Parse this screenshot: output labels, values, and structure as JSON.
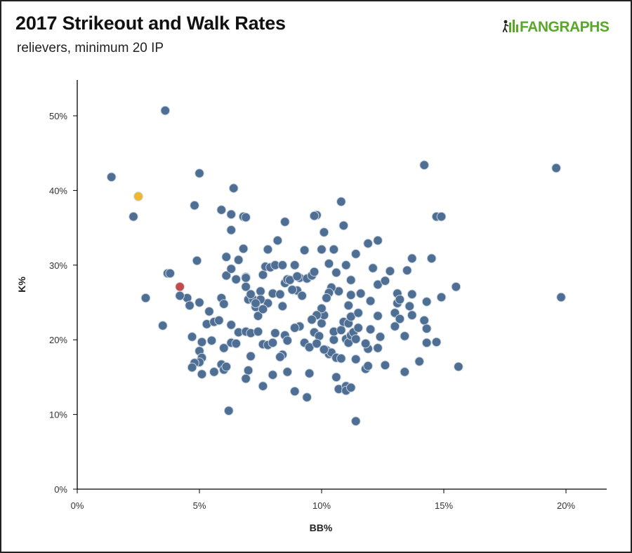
{
  "header": {
    "title": "2017 Strikeout and Walk Rates",
    "subtitle": "relievers, minimum 20 IP",
    "logo_text": "FANGRAPHS",
    "logo_icon": "fangraphs-logo-icon"
  },
  "colors": {
    "point": "#4e6f93",
    "highlight_yellow": "#f0b82c",
    "highlight_red": "#c44a4a",
    "axis": "#000000",
    "logo_green": "#5aa82a"
  },
  "chart_data": {
    "type": "scatter",
    "title": "2017 Strikeout and Walk Rates",
    "subtitle": "relievers, minimum 20 IP",
    "xlabel": "BB%",
    "ylabel": "K%",
    "xlim": [
      0,
      21.5
    ],
    "ylim": [
      0,
      55
    ],
    "x_ticks": [
      0,
      5,
      10,
      15,
      20
    ],
    "x_tick_labels": [
      "0%",
      "5%",
      "10%",
      "15%",
      "20%"
    ],
    "y_ticks": [
      0,
      10,
      20,
      30,
      40,
      50
    ],
    "y_tick_labels": [
      "0%",
      "10%",
      "20%",
      "30%",
      "40%",
      "50%"
    ],
    "highlighted": [
      {
        "x": 2.5,
        "y": 39.2,
        "color": "highlight_yellow"
      },
      {
        "x": 4.2,
        "y": 27.1,
        "color": "highlight_red"
      }
    ],
    "points": [
      [
        3.6,
        50.7
      ],
      [
        1.4,
        41.8
      ],
      [
        2.3,
        36.5
      ],
      [
        5.0,
        42.3
      ],
      [
        4.8,
        38.0
      ],
      [
        6.4,
        40.3
      ],
      [
        5.9,
        37.4
      ],
      [
        6.3,
        36.8
      ],
      [
        6.8,
        36.5
      ],
      [
        6.9,
        36.4
      ],
      [
        6.3,
        34.7
      ],
      [
        3.7,
        28.9
      ],
      [
        3.8,
        28.9
      ],
      [
        2.8,
        25.6
      ],
      [
        3.5,
        21.9
      ],
      [
        4.5,
        25.6
      ],
      [
        4.6,
        24.6
      ],
      [
        4.9,
        30.6
      ],
      [
        5.0,
        25.0
      ],
      [
        5.3,
        22.1
      ],
      [
        5.4,
        23.8
      ],
      [
        5.6,
        22.4
      ],
      [
        5.8,
        22.6
      ],
      [
        5.9,
        25.6
      ],
      [
        6.0,
        24.8
      ],
      [
        6.1,
        28.6
      ],
      [
        6.1,
        31.1
      ],
      [
        6.3,
        29.5
      ],
      [
        6.5,
        28.1
      ],
      [
        6.6,
        30.7
      ],
      [
        6.8,
        32.2
      ],
      [
        6.9,
        28.4
      ],
      [
        6.9,
        27.1
      ],
      [
        7.0,
        25.4
      ],
      [
        7.2,
        25.4
      ],
      [
        7.3,
        24.4
      ],
      [
        7.4,
        23.2
      ],
      [
        7.5,
        26.5
      ],
      [
        7.6,
        28.7
      ],
      [
        7.7,
        29.8
      ],
      [
        7.8,
        32.1
      ],
      [
        7.9,
        29.7
      ],
      [
        8.0,
        26.2
      ],
      [
        8.1,
        30.0
      ],
      [
        8.2,
        33.3
      ],
      [
        8.4,
        30.0
      ],
      [
        8.5,
        35.8
      ],
      [
        8.5,
        27.6
      ],
      [
        8.6,
        28.1
      ],
      [
        8.7,
        28.0
      ],
      [
        8.9,
        30.0
      ],
      [
        9.0,
        26.6
      ],
      [
        9.1,
        28.3
      ],
      [
        9.3,
        32.0
      ],
      [
        9.4,
        28.2
      ],
      [
        9.6,
        28.6
      ],
      [
        9.7,
        29.1
      ],
      [
        9.8,
        36.7
      ],
      [
        9.7,
        36.6
      ],
      [
        10.1,
        34.4
      ],
      [
        10.0,
        32.1
      ],
      [
        10.3,
        30.2
      ],
      [
        10.5,
        32.1
      ],
      [
        10.6,
        29.0
      ],
      [
        10.8,
        38.5
      ],
      [
        10.9,
        35.3
      ],
      [
        11.0,
        30.0
      ],
      [
        11.2,
        28.0
      ],
      [
        11.2,
        26.0
      ],
      [
        11.4,
        31.5
      ],
      [
        11.6,
        26.2
      ],
      [
        11.9,
        32.9
      ],
      [
        12.3,
        33.3
      ],
      [
        12.1,
        29.6
      ],
      [
        12.3,
        27.4
      ],
      [
        12.8,
        29.2
      ],
      [
        13.1,
        26.2
      ],
      [
        13.5,
        29.3
      ],
      [
        13.7,
        30.9
      ],
      [
        13.7,
        26.1
      ],
      [
        13.1,
        24.9
      ],
      [
        13.2,
        25.4
      ],
      [
        14.2,
        43.4
      ],
      [
        14.7,
        36.5
      ],
      [
        14.9,
        36.5
      ],
      [
        14.5,
        30.9
      ],
      [
        14.3,
        25.1
      ],
      [
        14.9,
        25.7
      ],
      [
        15.5,
        27.1
      ],
      [
        14.2,
        22.6
      ],
      [
        14.3,
        21.5
      ],
      [
        14.3,
        19.6
      ],
      [
        14.7,
        19.7
      ],
      [
        15.6,
        16.4
      ],
      [
        14.0,
        17.1
      ],
      [
        13.4,
        15.7
      ],
      [
        19.6,
        43.0
      ],
      [
        19.8,
        25.7
      ],
      [
        4.7,
        20.4
      ],
      [
        5.1,
        19.7
      ],
      [
        5.0,
        18.5
      ],
      [
        5.1,
        17.6
      ],
      [
        5.0,
        17.0
      ],
      [
        4.8,
        16.9
      ],
      [
        4.7,
        16.3
      ],
      [
        5.1,
        15.4
      ],
      [
        5.6,
        15.7
      ],
      [
        5.9,
        16.7
      ],
      [
        6.0,
        16.0
      ],
      [
        6.1,
        16.4
      ],
      [
        6.0,
        18.9
      ],
      [
        6.3,
        19.6
      ],
      [
        6.5,
        19.5
      ],
      [
        6.6,
        21.0
      ],
      [
        6.3,
        22.0
      ],
      [
        6.9,
        21.1
      ],
      [
        7.1,
        20.9
      ],
      [
        7.0,
        15.9
      ],
      [
        6.9,
        14.8
      ],
      [
        7.1,
        17.8
      ],
      [
        7.6,
        19.4
      ],
      [
        7.6,
        13.8
      ],
      [
        7.8,
        19.3
      ],
      [
        8.0,
        19.6
      ],
      [
        8.1,
        20.9
      ],
      [
        8.0,
        15.3
      ],
      [
        8.4,
        18.0
      ],
      [
        8.3,
        17.7
      ],
      [
        8.5,
        20.6
      ],
      [
        8.6,
        15.7
      ],
      [
        8.6,
        19.9
      ],
      [
        8.9,
        13.1
      ],
      [
        9.4,
        12.3
      ],
      [
        9.5,
        15.5
      ],
      [
        9.3,
        19.6
      ],
      [
        9.5,
        19.0
      ],
      [
        9.7,
        21.0
      ],
      [
        9.9,
        20.5
      ],
      [
        10.0,
        22.2
      ],
      [
        10.1,
        23.3
      ],
      [
        10.2,
        18.6
      ],
      [
        10.3,
        18.1
      ],
      [
        10.4,
        18.3
      ],
      [
        10.5,
        20.0
      ],
      [
        10.5,
        21.1
      ],
      [
        10.6,
        17.6
      ],
      [
        10.6,
        15.0
      ],
      [
        10.7,
        13.4
      ],
      [
        10.8,
        17.5
      ],
      [
        10.8,
        21.3
      ],
      [
        10.9,
        22.4
      ],
      [
        11.0,
        20.1
      ],
      [
        11.0,
        13.8
      ],
      [
        11.0,
        13.2
      ],
      [
        11.2,
        13.6
      ],
      [
        11.1,
        19.6
      ],
      [
        11.2,
        20.6
      ],
      [
        11.1,
        22.2
      ],
      [
        11.2,
        23.1
      ],
      [
        11.3,
        21.0
      ],
      [
        11.4,
        20.1
      ],
      [
        11.4,
        17.4
      ],
      [
        11.4,
        9.1
      ],
      [
        11.5,
        23.6
      ],
      [
        11.5,
        21.6
      ],
      [
        11.8,
        16.1
      ],
      [
        11.9,
        16.5
      ],
      [
        11.9,
        18.8
      ],
      [
        12.0,
        21.4
      ],
      [
        12.3,
        18.9
      ],
      [
        12.4,
        20.4
      ],
      [
        12.6,
        16.6
      ],
      [
        12.3,
        23.2
      ],
      [
        13.0,
        21.8
      ],
      [
        13.0,
        23.6
      ],
      [
        13.2,
        22.8
      ],
      [
        13.4,
        20.5
      ],
      [
        13.7,
        23.3
      ],
      [
        11.1,
        24.6
      ],
      [
        10.7,
        26.5
      ],
      [
        10.4,
        27.0
      ],
      [
        10.3,
        26.3
      ],
      [
        10.0,
        24.2
      ],
      [
        9.8,
        23.3
      ],
      [
        9.6,
        22.7
      ],
      [
        9.1,
        21.8
      ],
      [
        9.2,
        25.9
      ],
      [
        8.8,
        26.7
      ],
      [
        8.4,
        24.5
      ],
      [
        8.3,
        26.1
      ],
      [
        7.8,
        24.9
      ],
      [
        7.6,
        24.1
      ],
      [
        7.5,
        25.4
      ],
      [
        7.3,
        24.9
      ],
      [
        7.1,
        26.1
      ],
      [
        6.9,
        28.3
      ],
      [
        6.2,
        10.5
      ],
      [
        7.4,
        21.1
      ],
      [
        8.9,
        21.6
      ],
      [
        9.8,
        19.5
      ],
      [
        10.1,
        18.7
      ],
      [
        12.0,
        25.2
      ],
      [
        12.6,
        27.9
      ],
      [
        4.2,
        25.9
      ],
      [
        5.5,
        19.9
      ],
      [
        10.2,
        25.6
      ],
      [
        11.8,
        19.5
      ],
      [
        13.6,
        24.5
      ],
      [
        9.0,
        28.5
      ]
    ]
  }
}
